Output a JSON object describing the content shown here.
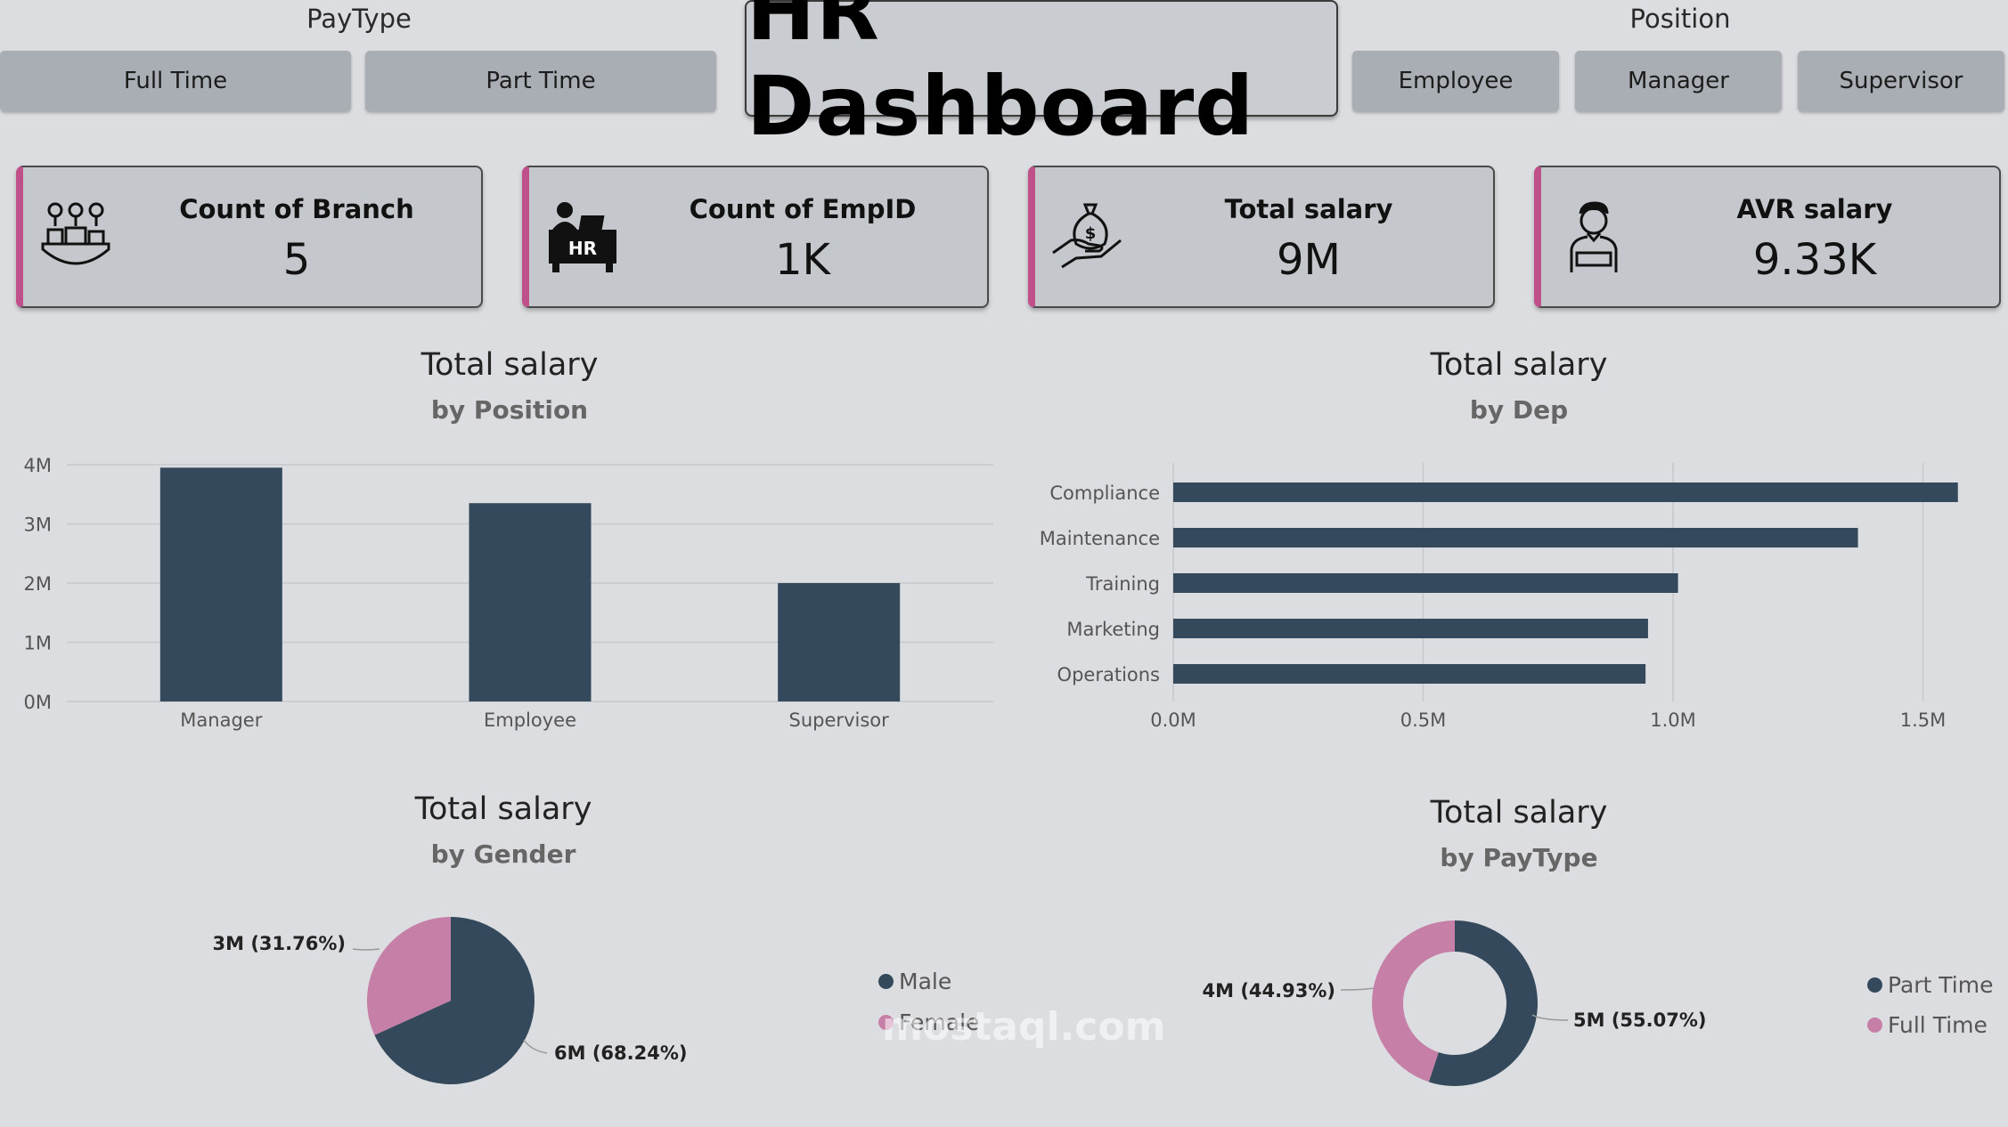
{
  "filters": {
    "paytype": {
      "title": "PayType",
      "options": [
        "Full Time",
        "Part Time"
      ]
    },
    "position": {
      "title": "Position",
      "options": [
        "Employee",
        "Manager",
        "Supervisor"
      ]
    }
  },
  "header": {
    "title": "HR Dashboard"
  },
  "kpis": [
    {
      "label": "Count of Branch",
      "value": "5",
      "icon": "branch-map-icon"
    },
    {
      "label": "Count of EmpID",
      "value": "1K",
      "icon": "hr-desk-icon"
    },
    {
      "label": "Total salary",
      "value": "9M",
      "icon": "money-bag-hand-icon"
    },
    {
      "label": "AVR salary",
      "value": "9.33K",
      "icon": "employee-avatar-icon"
    }
  ],
  "colors": {
    "navy": "#344a5c",
    "pink": "#c67fa7",
    "accent": "#c0508a"
  },
  "watermark": "mostaql.com",
  "chart_data": [
    {
      "type": "bar",
      "title": "Total salary",
      "subtitle": "by Position",
      "categories": [
        "Manager",
        "Employee",
        "Supervisor"
      ],
      "values": [
        3.95,
        3.35,
        2.0
      ],
      "unit": "M",
      "ylim": [
        0,
        4
      ],
      "yticks": [
        "0M",
        "1M",
        "2M",
        "3M",
        "4M"
      ],
      "grid": true
    },
    {
      "type": "bar",
      "orientation": "horizontal",
      "title": "Total salary",
      "subtitle": "by Dep",
      "categories": [
        "Compliance",
        "Maintenance",
        "Training",
        "Marketing",
        "Operations"
      ],
      "values": [
        1.57,
        1.37,
        1.01,
        0.95,
        0.945
      ],
      "unit": "M",
      "xlim": [
        0,
        1.5
      ],
      "xticks": [
        "0.0M",
        "0.5M",
        "1.0M",
        "1.5M"
      ],
      "grid": true
    },
    {
      "type": "pie",
      "title": "Total salary",
      "subtitle": "by Gender",
      "slices": [
        {
          "name": "Male",
          "value": 68.24,
          "label": "6M (68.24%)"
        },
        {
          "name": "Female",
          "value": 31.76,
          "label": "3M (31.76%)"
        }
      ],
      "legend": "right"
    },
    {
      "type": "pie",
      "donut": true,
      "title": "Total salary",
      "subtitle": "by PayType",
      "slices": [
        {
          "name": "Part Time",
          "value": 55.07,
          "label": "5M (55.07%)"
        },
        {
          "name": "Full Time",
          "value": 44.93,
          "label": "4M (44.93%)"
        }
      ],
      "legend": "right"
    }
  ]
}
